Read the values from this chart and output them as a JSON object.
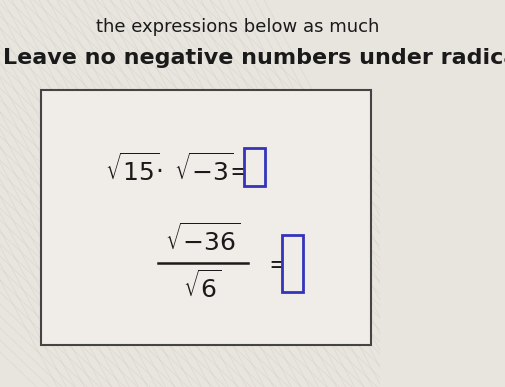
{
  "bg_color": "#e8e4de",
  "text_color": "#1a1a1a",
  "box_color": "#f0ede8",
  "box_border_color": "#444444",
  "answer_box_color": "#3333bb",
  "title_line1": "the expressions below as much",
  "title_line2": "Leave no negative numbers under radica",
  "figsize": [
    5.06,
    3.87
  ],
  "dpi": 100,
  "font_size_main": 18,
  "font_size_title1": 13,
  "font_size_title2": 16
}
